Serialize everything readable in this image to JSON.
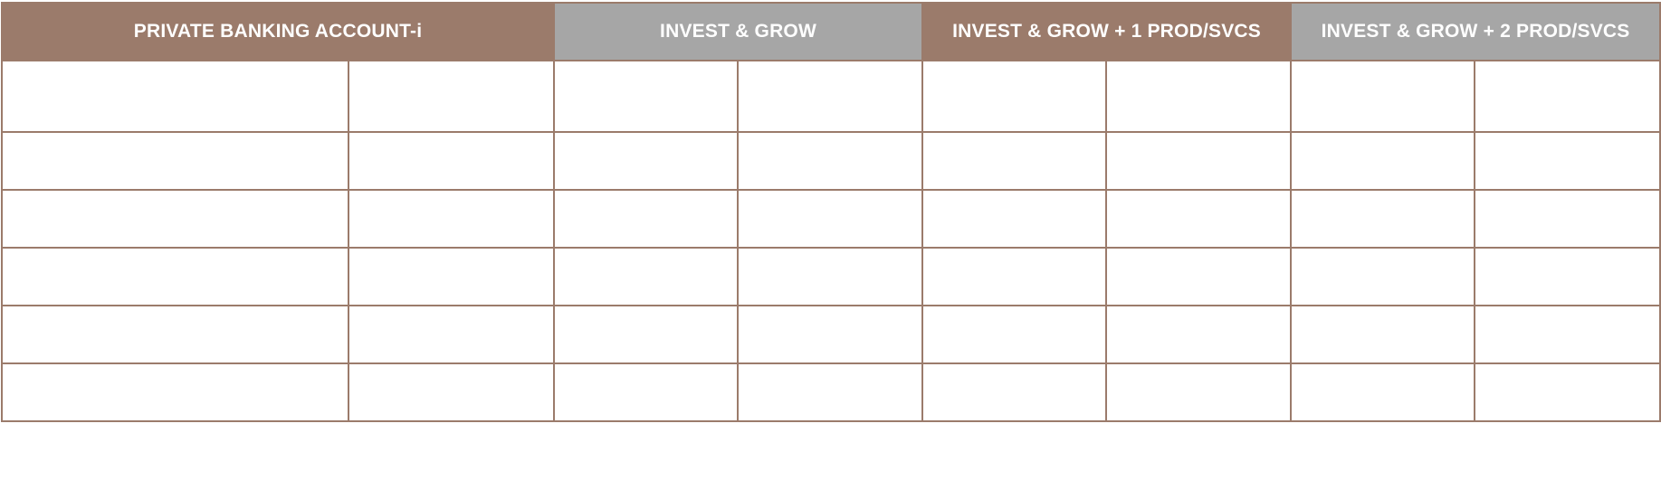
{
  "table": {
    "headers": [
      {
        "label": "PRIVATE BANKING ACCOUNT-i",
        "color": "#9b7b6b"
      },
      {
        "label": "INVEST & GROW",
        "color": "#a6a6a6"
      },
      {
        "label": "INVEST & GROW + 1 PROD/SVCS",
        "color": "#9b7b6b"
      },
      {
        "label": "INVEST & GROW + 2 PROD/SVCS",
        "color": "#a6a6a6"
      }
    ],
    "border_color": "#9b7b6b",
    "body_row_count": 6,
    "body_column_count": 8
  }
}
